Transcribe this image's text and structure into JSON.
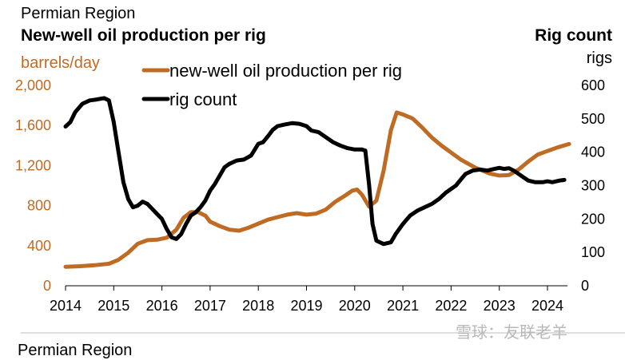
{
  "header": {
    "region": "Permian Region",
    "title": "New-well oil production per rig",
    "right_title": "Rig count",
    "left_unit": "barrels/day",
    "right_unit": "rigs"
  },
  "footer": {
    "text": "Permian Region"
  },
  "watermark": "雪球：友联老羊",
  "colors": {
    "production": "#bf6b23",
    "rigs": "#000000"
  },
  "chart_data": {
    "type": "line",
    "x_ticks": [
      "2014",
      "2015",
      "2016",
      "2017",
      "2018",
      "2019",
      "2020",
      "2021",
      "2022",
      "2023",
      "2024"
    ],
    "y_left": {
      "unit": "barrels/day",
      "range": [
        0,
        2000
      ],
      "ticks": [
        "0",
        "400",
        "800",
        "1,200",
        "1,600",
        "2,000"
      ]
    },
    "y_right": {
      "unit": "rigs",
      "range": [
        0,
        600
      ],
      "ticks": [
        "0",
        "100",
        "200",
        "300",
        "400",
        "500",
        "600"
      ]
    },
    "legend": [
      "new-well oil production per rig",
      "rig count"
    ],
    "series": [
      {
        "name": "new-well oil production per rig",
        "axis": "left",
        "color": "#bf6b23",
        "points": [
          [
            2014.0,
            190
          ],
          [
            2014.3,
            195
          ],
          [
            2014.6,
            205
          ],
          [
            2014.9,
            220
          ],
          [
            2015.1,
            260
          ],
          [
            2015.3,
            330
          ],
          [
            2015.5,
            420
          ],
          [
            2015.7,
            455
          ],
          [
            2015.9,
            460
          ],
          [
            2016.1,
            480
          ],
          [
            2016.3,
            560
          ],
          [
            2016.45,
            680
          ],
          [
            2016.6,
            735
          ],
          [
            2016.75,
            735
          ],
          [
            2016.9,
            700
          ],
          [
            2017.0,
            640
          ],
          [
            2017.2,
            595
          ],
          [
            2017.4,
            560
          ],
          [
            2017.6,
            550
          ],
          [
            2017.8,
            580
          ],
          [
            2018.0,
            620
          ],
          [
            2018.2,
            660
          ],
          [
            2018.4,
            685
          ],
          [
            2018.6,
            710
          ],
          [
            2018.8,
            725
          ],
          [
            2019.0,
            710
          ],
          [
            2019.2,
            720
          ],
          [
            2019.4,
            760
          ],
          [
            2019.6,
            840
          ],
          [
            2019.8,
            900
          ],
          [
            2019.95,
            950
          ],
          [
            2020.05,
            960
          ],
          [
            2020.15,
            910
          ],
          [
            2020.3,
            790
          ],
          [
            2020.45,
            850
          ],
          [
            2020.6,
            1150
          ],
          [
            2020.75,
            1550
          ],
          [
            2020.87,
            1730
          ],
          [
            2021.0,
            1710
          ],
          [
            2021.2,
            1670
          ],
          [
            2021.4,
            1580
          ],
          [
            2021.6,
            1480
          ],
          [
            2021.8,
            1400
          ],
          [
            2022.0,
            1330
          ],
          [
            2022.2,
            1260
          ],
          [
            2022.5,
            1180
          ],
          [
            2022.8,
            1120
          ],
          [
            2023.0,
            1100
          ],
          [
            2023.2,
            1105
          ],
          [
            2023.4,
            1160
          ],
          [
            2023.6,
            1240
          ],
          [
            2023.8,
            1310
          ],
          [
            2024.0,
            1345
          ],
          [
            2024.2,
            1380
          ],
          [
            2024.45,
            1415
          ]
        ]
      },
      {
        "name": "rig count",
        "axis": "right",
        "color": "#000000",
        "points": [
          [
            2014.0,
            477
          ],
          [
            2014.1,
            490
          ],
          [
            2014.2,
            520
          ],
          [
            2014.35,
            545
          ],
          [
            2014.5,
            555
          ],
          [
            2014.65,
            558
          ],
          [
            2014.8,
            562
          ],
          [
            2014.9,
            555
          ],
          [
            2015.0,
            490
          ],
          [
            2015.1,
            400
          ],
          [
            2015.2,
            310
          ],
          [
            2015.3,
            260
          ],
          [
            2015.4,
            235
          ],
          [
            2015.5,
            240
          ],
          [
            2015.6,
            252
          ],
          [
            2015.7,
            245
          ],
          [
            2015.8,
            230
          ],
          [
            2015.9,
            215
          ],
          [
            2016.0,
            200
          ],
          [
            2016.1,
            170
          ],
          [
            2016.2,
            145
          ],
          [
            2016.3,
            140
          ],
          [
            2016.4,
            155
          ],
          [
            2016.5,
            185
          ],
          [
            2016.6,
            210
          ],
          [
            2016.7,
            220
          ],
          [
            2016.8,
            235
          ],
          [
            2016.9,
            255
          ],
          [
            2017.0,
            285
          ],
          [
            2017.1,
            305
          ],
          [
            2017.2,
            330
          ],
          [
            2017.3,
            355
          ],
          [
            2017.4,
            365
          ],
          [
            2017.55,
            375
          ],
          [
            2017.7,
            378
          ],
          [
            2017.85,
            390
          ],
          [
            2018.0,
            425
          ],
          [
            2018.1,
            430
          ],
          [
            2018.2,
            448
          ],
          [
            2018.3,
            467
          ],
          [
            2018.4,
            478
          ],
          [
            2018.55,
            483
          ],
          [
            2018.7,
            487
          ],
          [
            2018.85,
            485
          ],
          [
            2019.0,
            478
          ],
          [
            2019.1,
            465
          ],
          [
            2019.25,
            460
          ],
          [
            2019.4,
            445
          ],
          [
            2019.55,
            430
          ],
          [
            2019.7,
            420
          ],
          [
            2019.85,
            412
          ],
          [
            2020.0,
            408
          ],
          [
            2020.15,
            408
          ],
          [
            2020.22,
            405
          ],
          [
            2020.3,
            300
          ],
          [
            2020.37,
            185
          ],
          [
            2020.45,
            135
          ],
          [
            2020.6,
            125
          ],
          [
            2020.75,
            130
          ],
          [
            2020.85,
            155
          ],
          [
            2021.0,
            185
          ],
          [
            2021.15,
            210
          ],
          [
            2021.3,
            225
          ],
          [
            2021.45,
            235
          ],
          [
            2021.6,
            245
          ],
          [
            2021.75,
            260
          ],
          [
            2021.9,
            280
          ],
          [
            2022.0,
            290
          ],
          [
            2022.1,
            300
          ],
          [
            2022.2,
            318
          ],
          [
            2022.3,
            335
          ],
          [
            2022.45,
            345
          ],
          [
            2022.6,
            348
          ],
          [
            2022.75,
            345
          ],
          [
            2022.9,
            350
          ],
          [
            2023.0,
            353
          ],
          [
            2023.1,
            350
          ],
          [
            2023.2,
            352
          ],
          [
            2023.3,
            345
          ],
          [
            2023.45,
            330
          ],
          [
            2023.6,
            315
          ],
          [
            2023.75,
            310
          ],
          [
            2023.9,
            310
          ],
          [
            2024.0,
            313
          ],
          [
            2024.1,
            310
          ],
          [
            2024.25,
            315
          ],
          [
            2024.35,
            317
          ]
        ]
      }
    ]
  }
}
